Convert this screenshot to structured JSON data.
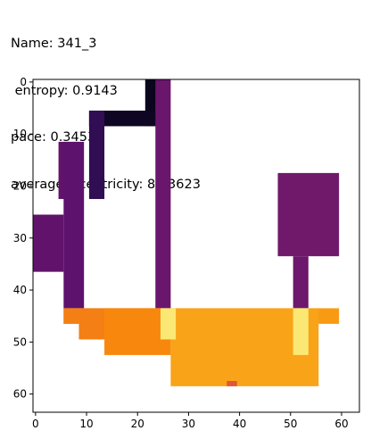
{
  "title_lines": [
    "Name: 341_3",
    " entropy: 0.9143",
    "pace: 0.3453",
    "averageEccentricity: 81.3623"
  ],
  "chart_data": {
    "type": "heatmap",
    "colormap": "inferno",
    "xlim": [
      -0.5,
      63.5
    ],
    "ylim": [
      63.5,
      -0.5
    ],
    "x_ticks": [
      0,
      10,
      20,
      30,
      40,
      50,
      60
    ],
    "y_ticks": [
      0,
      10,
      20,
      30,
      40,
      50,
      60
    ],
    "grid": false,
    "regions": [
      {
        "x": [
          22,
          25
        ],
        "y": [
          0,
          9
        ],
        "value": 0.05
      },
      {
        "x": [
          11,
          25
        ],
        "y": [
          6,
          9
        ],
        "value": 0.06
      },
      {
        "x": [
          11,
          14
        ],
        "y": [
          6,
          23
        ],
        "value": 0.17
      },
      {
        "x": [
          5,
          9
        ],
        "y": [
          12,
          23
        ],
        "value": 0.28
      },
      {
        "x": [
          6,
          10
        ],
        "y": [
          12,
          44
        ],
        "value": 0.27
      },
      {
        "x": [
          0,
          6
        ],
        "y": [
          26,
          37
        ],
        "value": 0.28
      },
      {
        "x": [
          24,
          27
        ],
        "y": [
          0,
          44
        ],
        "value": 0.3
      },
      {
        "x": [
          48,
          60
        ],
        "y": [
          18,
          34
        ],
        "value": 0.32
      },
      {
        "x": [
          51,
          54
        ],
        "y": [
          34,
          44
        ],
        "value": 0.31
      },
      {
        "x": [
          6,
          60
        ],
        "y": [
          44,
          47
        ],
        "value": 0.78
      },
      {
        "x": [
          6,
          10
        ],
        "y": [
          44,
          47
        ],
        "value": 0.72
      },
      {
        "x": [
          9,
          25
        ],
        "y": [
          44,
          50
        ],
        "value": 0.72
      },
      {
        "x": [
          14,
          27
        ],
        "y": [
          44,
          53
        ],
        "value": 0.74
      },
      {
        "x": [
          27,
          56
        ],
        "y": [
          44,
          59
        ],
        "value": 0.8
      },
      {
        "x": [
          25,
          28
        ],
        "y": [
          44,
          50
        ],
        "value": 0.95
      },
      {
        "x": [
          51,
          54
        ],
        "y": [
          44,
          53
        ],
        "value": 0.95
      },
      {
        "x": [
          38,
          40
        ],
        "y": [
          58,
          59
        ],
        "value": 0.62
      }
    ]
  }
}
